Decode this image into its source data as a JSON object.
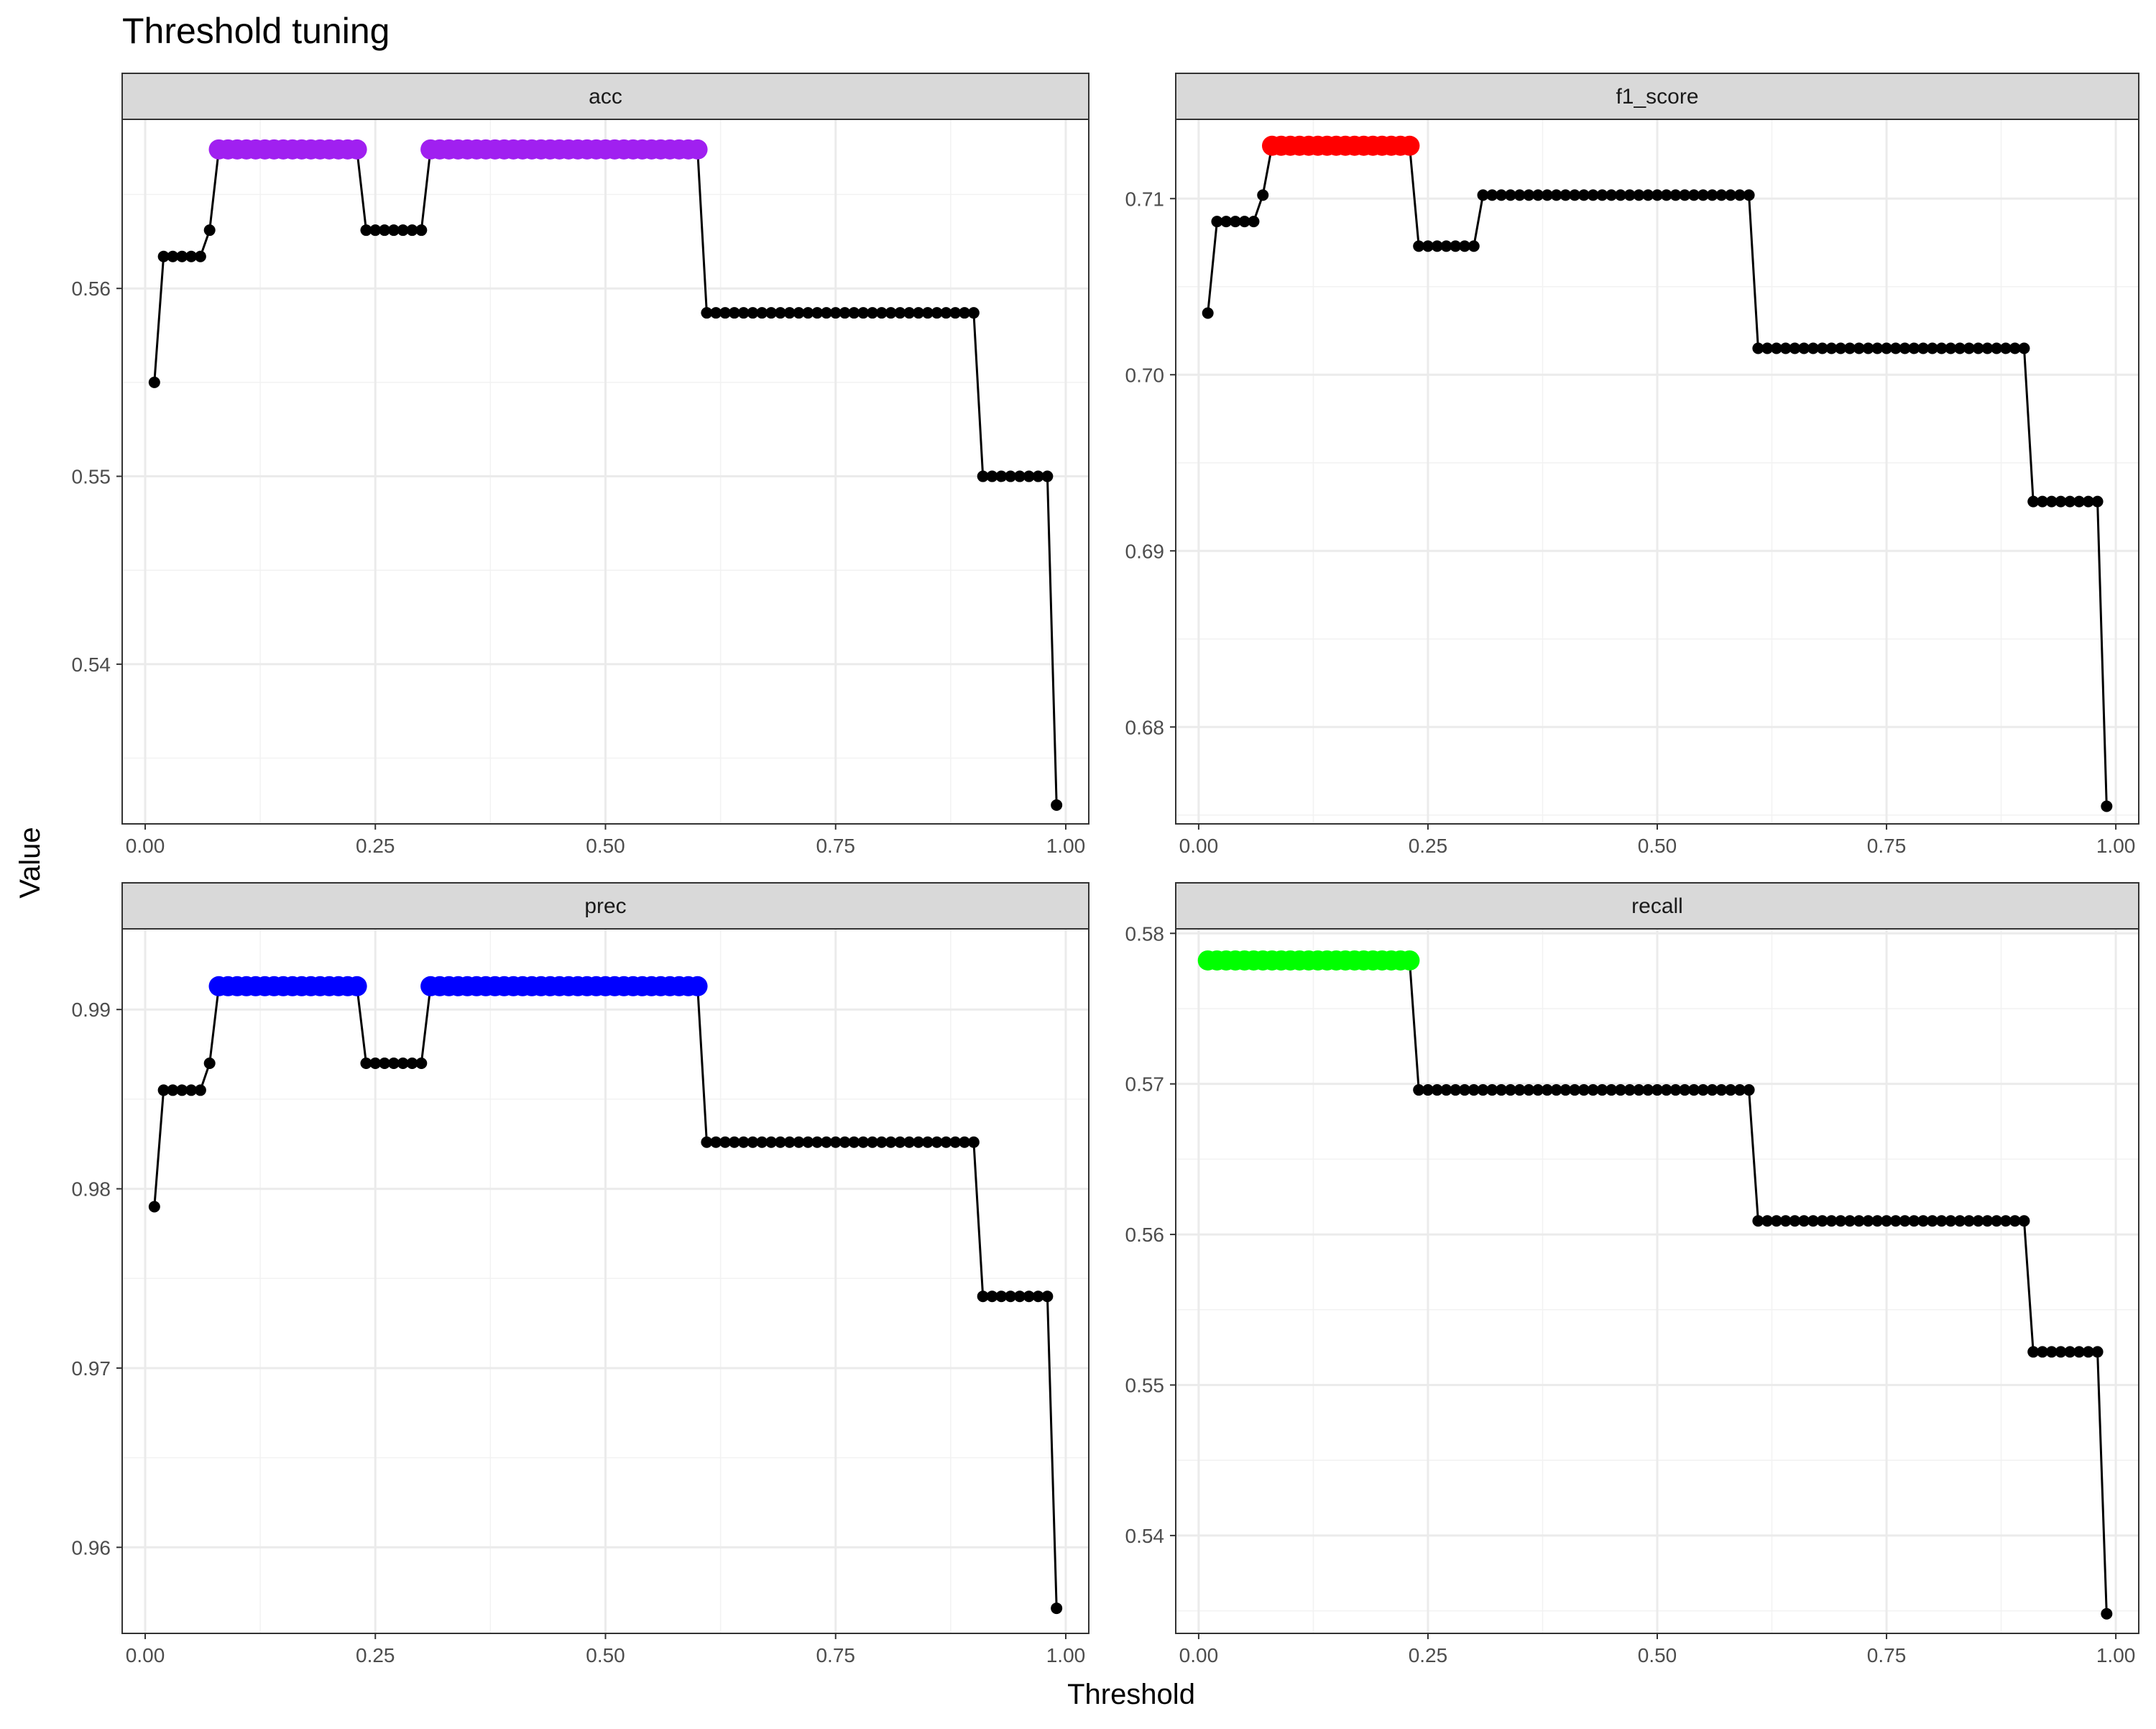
{
  "title": "Threshold tuning",
  "chart_data": {
    "type": "line",
    "title": "Threshold tuning",
    "xlabel": "Threshold",
    "ylabel": "Value",
    "layout": "facet_wrap 2x2",
    "x_ticks": [
      "0.00",
      "0.25",
      "0.50",
      "0.75",
      "1.00"
    ],
    "xlim": [
      -0.025,
      1.025
    ],
    "grid": true,
    "legend": "none",
    "thresholds": [
      0.01,
      0.02,
      0.03,
      0.04,
      0.05,
      0.06,
      0.07,
      0.08,
      0.09,
      0.1,
      0.11,
      0.12,
      0.13,
      0.14,
      0.15,
      0.16,
      0.17,
      0.18,
      0.19,
      0.2,
      0.21,
      0.22,
      0.23,
      0.24,
      0.25,
      0.26,
      0.27,
      0.28,
      0.29,
      0.3,
      0.31,
      0.32,
      0.33,
      0.34,
      0.35,
      0.36,
      0.37,
      0.38,
      0.39,
      0.4,
      0.41,
      0.42,
      0.43,
      0.44,
      0.45,
      0.46,
      0.47,
      0.48,
      0.49,
      0.5,
      0.51,
      0.52,
      0.53,
      0.54,
      0.55,
      0.56,
      0.57,
      0.58,
      0.59,
      0.6,
      0.61,
      0.62,
      0.63,
      0.64,
      0.65,
      0.66,
      0.67,
      0.68,
      0.69,
      0.7,
      0.71,
      0.72,
      0.73,
      0.74,
      0.75,
      0.76,
      0.77,
      0.78,
      0.79,
      0.8,
      0.81,
      0.82,
      0.83,
      0.84,
      0.85,
      0.86,
      0.87,
      0.88,
      0.89,
      0.9,
      0.91,
      0.92,
      0.93,
      0.94,
      0.95,
      0.96,
      0.97,
      0.98,
      0.99
    ],
    "panels": [
      {
        "name": "acc",
        "highlight_color": "#a020f0",
        "ylim": [
          0.5315,
          0.569
        ],
        "y_ticks": [
          0.54,
          0.55,
          0.56
        ],
        "y_tick_labels": [
          "0.54",
          "0.55",
          "0.56"
        ],
        "segments": [
          [
            1,
            0.555
          ],
          [
            2,
            0.5617
          ],
          [
            7,
            0.5631
          ],
          [
            8,
            0.5674
          ],
          [
            24,
            0.5631
          ],
          [
            31,
            0.5674
          ],
          [
            61,
            0.5587
          ],
          [
            91,
            0.55
          ],
          [
            99,
            0.5325
          ]
        ],
        "highlight": [
          [
            8,
            23
          ],
          [
            31,
            60
          ]
        ]
      },
      {
        "name": "f1_score",
        "highlight_color": "#ff0000",
        "ylim": [
          0.6745,
          0.7145
        ],
        "y_ticks": [
          0.68,
          0.69,
          0.7,
          0.71
        ],
        "y_tick_labels": [
          "0.68",
          "0.69",
          "0.70",
          "0.71"
        ],
        "segments": [
          [
            1,
            0.7035
          ],
          [
            2,
            0.7087
          ],
          [
            7,
            0.7102
          ],
          [
            8,
            0.713
          ],
          [
            24,
            0.7073
          ],
          [
            31,
            0.7102
          ],
          [
            61,
            0.7015
          ],
          [
            91,
            0.6928
          ],
          [
            99,
            0.6755
          ]
        ],
        "highlight": [
          [
            8,
            23
          ]
        ]
      },
      {
        "name": "prec",
        "highlight_color": "#0000ff",
        "ylim": [
          0.9552,
          0.9945
        ],
        "y_ticks": [
          0.96,
          0.97,
          0.98,
          0.99
        ],
        "y_tick_labels": [
          "0.96",
          "0.97",
          "0.98",
          "0.99"
        ],
        "segments": [
          [
            1,
            0.979
          ],
          [
            2,
            0.9855
          ],
          [
            7,
            0.987
          ],
          [
            8,
            0.9913
          ],
          [
            24,
            0.987
          ],
          [
            31,
            0.9913
          ],
          [
            61,
            0.9826
          ],
          [
            91,
            0.974
          ],
          [
            99,
            0.9566
          ]
        ],
        "highlight": [
          [
            8,
            23
          ],
          [
            31,
            60
          ]
        ]
      },
      {
        "name": "recall",
        "highlight_color": "#00ff00",
        "ylim": [
          0.5335,
          0.5803
        ],
        "y_ticks": [
          0.54,
          0.55,
          0.56,
          0.57,
          0.58
        ],
        "y_tick_labels": [
          "0.54",
          "0.55",
          "0.56",
          "0.57",
          "0.58"
        ],
        "segments": [
          [
            1,
            0.5782
          ],
          [
            24,
            0.5696
          ],
          [
            61,
            0.5609
          ],
          [
            91,
            0.5522
          ],
          [
            99,
            0.5348
          ]
        ],
        "highlight": [
          [
            1,
            23
          ]
        ]
      }
    ]
  }
}
